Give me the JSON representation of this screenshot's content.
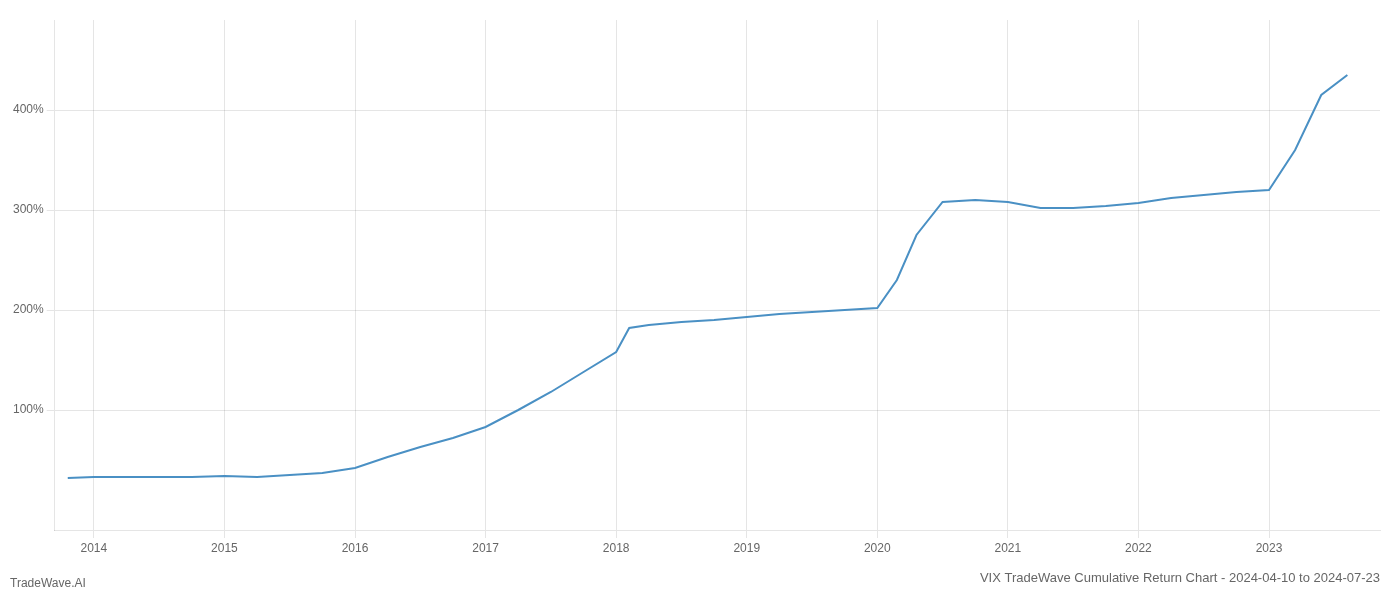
{
  "chart_data": {
    "type": "line",
    "title": "VIX TradeWave Cumulative Return Chart - 2024-04-10 to 2024-07-23",
    "annotations": [
      "TradeWave.AI"
    ],
    "x": [
      2013.8,
      2014.0,
      2014.15,
      2014.3,
      2014.5,
      2014.75,
      2015.0,
      2015.25,
      2015.5,
      2015.75,
      2016.0,
      2016.25,
      2016.5,
      2016.75,
      2017.0,
      2017.25,
      2017.5,
      2017.75,
      2018.0,
      2018.1,
      2018.25,
      2018.5,
      2018.75,
      2019.0,
      2019.25,
      2019.5,
      2019.75,
      2020.0,
      2020.15,
      2020.3,
      2020.5,
      2020.75,
      2021.0,
      2021.25,
      2021.5,
      2021.75,
      2022.0,
      2022.25,
      2022.5,
      2022.75,
      2023.0,
      2023.2,
      2023.4,
      2023.6
    ],
    "values": [
      32,
      33,
      33,
      33,
      33,
      33,
      34,
      33,
      35,
      37,
      42,
      53,
      63,
      72,
      83,
      100,
      118,
      138,
      158,
      182,
      185,
      188,
      190,
      193,
      196,
      198,
      200,
      202,
      230,
      275,
      308,
      310,
      308,
      302,
      302,
      304,
      307,
      312,
      315,
      318,
      320,
      360,
      415,
      435
    ],
    "color": "#4a90c4",
    "xlim": [
      2013.7,
      2023.85
    ],
    "xticks": [
      2014,
      2015,
      2016,
      2017,
      2018,
      2019,
      2020,
      2021,
      2022,
      2023
    ],
    "ylim": [
      -20,
      490
    ],
    "yticks": [
      {
        "value": 100,
        "label": "100%"
      },
      {
        "value": 200,
        "label": "200%"
      },
      {
        "value": 300,
        "label": "300%"
      },
      {
        "value": 400,
        "label": "400%"
      }
    ],
    "grid": true
  }
}
